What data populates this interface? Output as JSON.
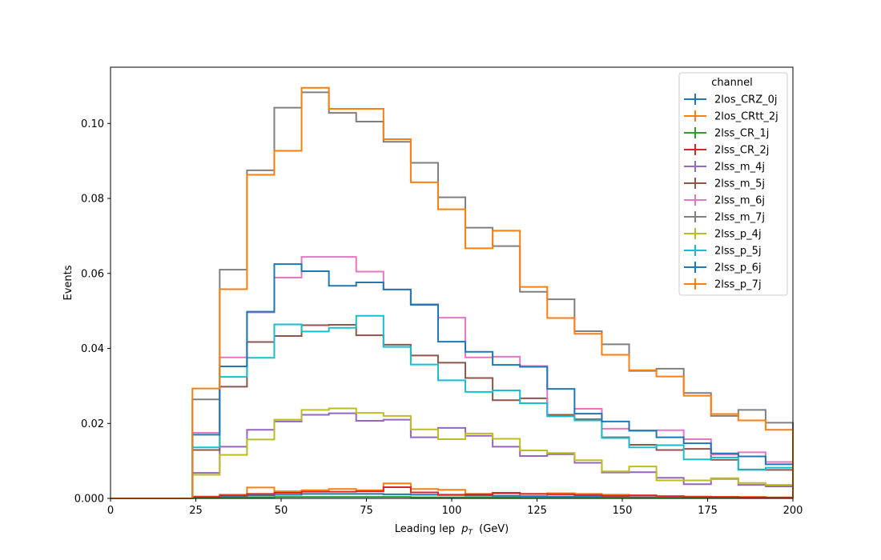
{
  "chart_data": {
    "type": "line",
    "drawstyle": "steps",
    "xlabel": "Leading lep",
    "xlabel_math": "p",
    "xlabel_sub": "T",
    "xlabel_unit": "(GeV)",
    "ylabel": "Events",
    "xlim": [
      0,
      200
    ],
    "ylim": [
      0,
      0.115
    ],
    "xticks": [
      0,
      25,
      50,
      75,
      100,
      125,
      150,
      175,
      200
    ],
    "yticks": [
      0.0,
      0.02,
      0.04,
      0.06,
      0.08,
      0.1
    ],
    "ytick_labels": [
      "0.000",
      "0.02",
      "0.04",
      "0.06",
      "0.08",
      "0.10"
    ],
    "grid": false,
    "legend": {
      "title": "channel",
      "placement": "top-right"
    },
    "bin_edges": [
      0,
      8,
      16,
      24,
      32,
      40,
      48,
      56,
      64,
      72,
      80,
      88,
      96,
      104,
      112,
      120,
      128,
      136,
      144,
      152,
      160,
      168,
      176,
      184,
      192,
      200
    ],
    "series": [
      {
        "name": "2los_CRZ_0j",
        "color": "#1f77b4",
        "values": [
          0,
          0,
          0,
          0.0002,
          0.0005,
          0.0008,
          0.001,
          0.0012,
          0.0012,
          0.0012,
          0.0011,
          0.001,
          0.0009,
          0.0008,
          0.0007,
          0.0006,
          0.0005,
          0.0005,
          0.0004,
          0.0003,
          0.0003,
          0.0002,
          0.0002,
          0.0002,
          0.0002
        ]
      },
      {
        "name": "2los_CRtt_2j",
        "color": "#ff7f0e",
        "values": [
          0,
          0,
          0,
          0.0005,
          0.001,
          0.0029,
          0.0019,
          0.0022,
          0.0025,
          0.0022,
          0.004,
          0.0025,
          0.0023,
          0.0012,
          0.0013,
          0.0012,
          0.0014,
          0.0012,
          0.001,
          0.0008,
          0.0006,
          0.0005,
          0.0004,
          0.0004,
          0.0003
        ]
      },
      {
        "name": "2lss_CR_1j",
        "color": "#2ca02c",
        "values": [
          0,
          0,
          0,
          0.0001,
          0.0002,
          0.0003,
          0.0004,
          0.0004,
          0.0004,
          0.0004,
          0.0004,
          0.0003,
          0.0003,
          0.0003,
          0.0003,
          0.0002,
          0.0002,
          0.0002,
          0.0002,
          0.0001,
          0.0001,
          0.0001,
          0.0001,
          0.0001,
          0.0001
        ]
      },
      {
        "name": "2lss_CR_2j",
        "color": "#d62728",
        "values": [
          0,
          0,
          0,
          0.0004,
          0.0008,
          0.0012,
          0.0015,
          0.0018,
          0.0018,
          0.0019,
          0.003,
          0.0016,
          0.001,
          0.0011,
          0.0015,
          0.0012,
          0.0011,
          0.0009,
          0.0007,
          0.0008,
          0.0006,
          0.0004,
          0.0004,
          0.0003,
          0.0002
        ]
      },
      {
        "name": "2lss_m_4j",
        "color": "#9467bd",
        "values": [
          0,
          0,
          0,
          0.0068,
          0.0138,
          0.0183,
          0.0205,
          0.0223,
          0.0227,
          0.0207,
          0.021,
          0.0163,
          0.0188,
          0.0167,
          0.0138,
          0.0113,
          0.0118,
          0.0095,
          0.0069,
          0.007,
          0.0055,
          0.0038,
          0.0052,
          0.0036,
          0.0032
        ]
      },
      {
        "name": "2lss_m_5j",
        "color": "#8c564b",
        "values": [
          0,
          0,
          0,
          0.0129,
          0.0298,
          0.0417,
          0.0433,
          0.0462,
          0.0463,
          0.0435,
          0.041,
          0.0381,
          0.0362,
          0.0321,
          0.0262,
          0.0267,
          0.0223,
          0.0211,
          0.0163,
          0.0143,
          0.0129,
          0.0132,
          0.0103,
          0.0077,
          0.0076
        ]
      },
      {
        "name": "2lss_m_6j",
        "color": "#e377c2",
        "values": [
          0,
          0,
          0,
          0.0175,
          0.0376,
          0.0496,
          0.0589,
          0.0644,
          0.0644,
          0.0605,
          0.0557,
          0.0518,
          0.0482,
          0.0376,
          0.0378,
          0.0353,
          0.0219,
          0.0239,
          0.0186,
          0.018,
          0.0182,
          0.0158,
          0.0117,
          0.0123,
          0.0097
        ]
      },
      {
        "name": "2lss_m_7j",
        "color": "#7f7f7f",
        "values": [
          0,
          0,
          0,
          0.0264,
          0.061,
          0.0875,
          0.1042,
          0.1083,
          0.1028,
          0.1005,
          0.0951,
          0.0895,
          0.0803,
          0.0722,
          0.0673,
          0.0551,
          0.0531,
          0.0446,
          0.0411,
          0.034,
          0.0346,
          0.0281,
          0.022,
          0.0236,
          0.0202
        ]
      },
      {
        "name": "2lss_p_4j",
        "color": "#bcbd22",
        "values": [
          0,
          0,
          0,
          0.0063,
          0.0116,
          0.0157,
          0.021,
          0.0236,
          0.024,
          0.0228,
          0.022,
          0.0184,
          0.0158,
          0.0173,
          0.0159,
          0.0128,
          0.0121,
          0.0102,
          0.0072,
          0.0085,
          0.0048,
          0.0048,
          0.0054,
          0.0041,
          0.0036
        ]
      },
      {
        "name": "2lss_p_5j",
        "color": "#17becf",
        "values": [
          0,
          0,
          0,
          0.0136,
          0.0324,
          0.0375,
          0.0464,
          0.0445,
          0.0455,
          0.0487,
          0.0404,
          0.0357,
          0.0315,
          0.0284,
          0.0288,
          0.0254,
          0.0219,
          0.0208,
          0.0161,
          0.0136,
          0.0142,
          0.0104,
          0.0109,
          0.0076,
          0.0082
        ]
      },
      {
        "name": "2lss_p_6j",
        "color": "#1f77b4",
        "values": [
          0,
          0,
          0,
          0.017,
          0.0352,
          0.0498,
          0.0625,
          0.0606,
          0.0567,
          0.0576,
          0.0557,
          0.0516,
          0.0418,
          0.0391,
          0.0356,
          0.0351,
          0.0292,
          0.0226,
          0.0205,
          0.0181,
          0.0163,
          0.0147,
          0.012,
          0.0112,
          0.0091
        ]
      },
      {
        "name": "2lss_p_7j",
        "color": "#ff7f0e",
        "values": [
          0,
          0,
          0,
          0.0293,
          0.0558,
          0.0863,
          0.0927,
          0.1095,
          0.1039,
          0.1039,
          0.0958,
          0.0843,
          0.0771,
          0.0667,
          0.0714,
          0.0564,
          0.0481,
          0.0439,
          0.0383,
          0.0342,
          0.0325,
          0.0274,
          0.0225,
          0.0208,
          0.0183
        ]
      }
    ]
  }
}
